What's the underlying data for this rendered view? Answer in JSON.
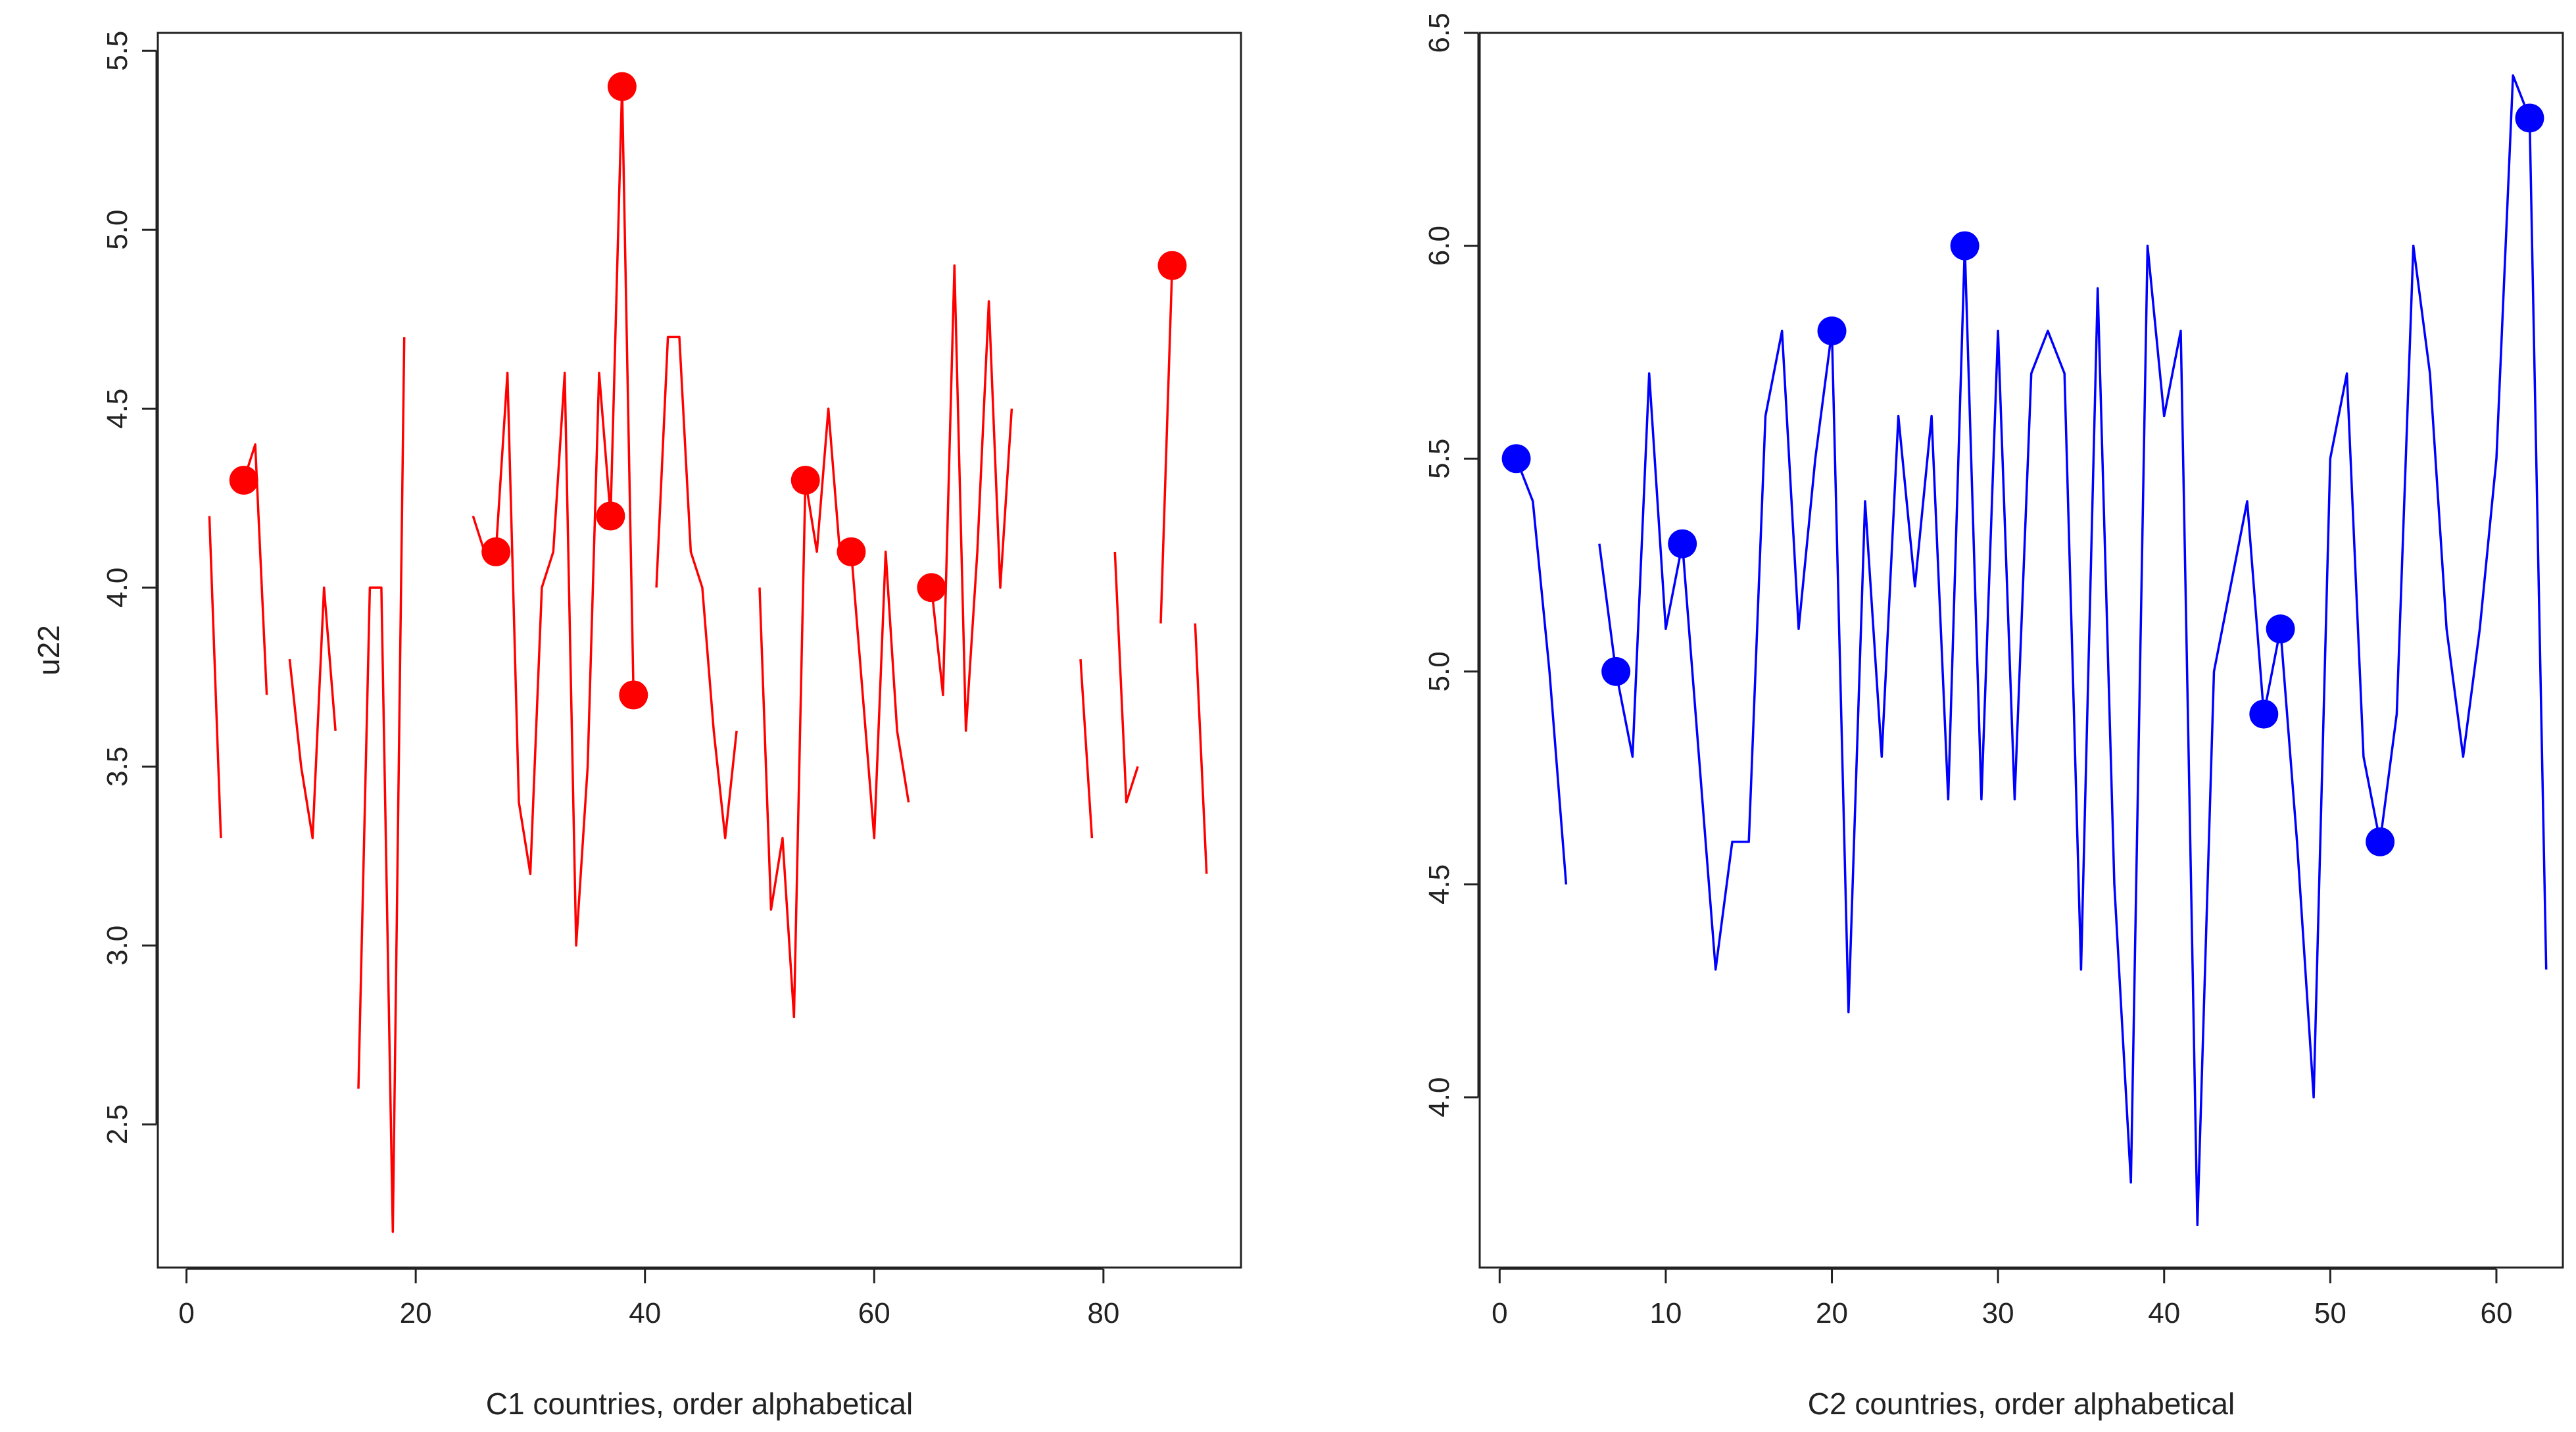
{
  "chart_data": [
    {
      "type": "line",
      "xlabel": "C1 countries, order alphabetical",
      "ylabel": "u22",
      "xlim": [
        -2.5,
        92
      ],
      "ylim": [
        2.1,
        5.55
      ],
      "xticks": [
        0,
        20,
        40,
        60,
        80
      ],
      "yticks": [
        2.5,
        3.0,
        3.5,
        4.0,
        4.5,
        5.0,
        5.5
      ],
      "line_color": "#ff0000",
      "point_color": "#ff0000",
      "series": [
        {
          "name": "u22",
          "x": [
            1,
            2,
            3,
            4,
            5,
            6,
            7,
            8,
            9,
            10,
            11,
            12,
            13,
            14,
            15,
            16,
            17,
            18,
            19,
            20,
            21,
            22,
            23,
            24,
            25,
            26,
            27,
            28,
            29,
            30,
            31,
            32,
            33,
            34,
            35,
            36,
            37,
            38,
            39,
            40,
            41,
            42,
            43,
            44,
            45,
            46,
            47,
            48,
            49,
            50,
            51,
            52,
            53,
            54,
            55,
            56,
            57,
            58,
            59,
            60,
            61,
            62,
            63,
            64,
            65,
            66,
            67,
            68,
            69,
            70,
            71,
            72,
            73,
            74,
            75,
            76,
            77,
            78,
            79,
            80,
            81,
            82,
            83,
            84,
            85,
            86,
            87,
            88,
            89
          ],
          "values": [
            null,
            4.2,
            3.3,
            null,
            4.3,
            4.4,
            3.7,
            null,
            3.8,
            3.5,
            3.3,
            4.0,
            3.6,
            null,
            2.6,
            4.0,
            4.0,
            2.2,
            4.7,
            null,
            null,
            null,
            null,
            null,
            4.2,
            4.1,
            4.1,
            4.6,
            3.4,
            3.2,
            4.0,
            4.1,
            4.6,
            3.0,
            3.5,
            4.6,
            4.2,
            5.4,
            3.7,
            null,
            4.0,
            4.7,
            4.7,
            4.1,
            4.0,
            3.6,
            3.3,
            3.6,
            null,
            4.0,
            3.1,
            3.3,
            2.8,
            4.3,
            4.1,
            4.5,
            4.1,
            4.1,
            3.7,
            3.3,
            4.1,
            3.6,
            3.4,
            null,
            4.0,
            3.7,
            4.9,
            3.6,
            4.1,
            4.8,
            4.0,
            4.5,
            null,
            null,
            null,
            null,
            null,
            3.8,
            3.3,
            null,
            4.1,
            3.4,
            3.5,
            null,
            3.9,
            4.9,
            null,
            3.9,
            3.2
          ]
        }
      ],
      "highlighted_points": {
        "x": [
          5,
          27,
          37,
          38,
          39,
          54,
          58,
          65,
          86
        ],
        "y": [
          4.3,
          4.1,
          4.2,
          5.4,
          3.7,
          4.3,
          4.1,
          4.0,
          4.9
        ]
      }
    },
    {
      "type": "line",
      "xlabel": "C2 countries, order alphabetical",
      "ylabel": "",
      "xlim": [
        -1.2,
        64
      ],
      "ylim": [
        3.6,
        6.5
      ],
      "xticks": [
        0,
        10,
        20,
        30,
        40,
        50,
        60
      ],
      "yticks": [
        4.0,
        4.5,
        5.0,
        5.5,
        6.0,
        6.5
      ],
      "line_color": "#0000ff",
      "point_color": "#0000ff",
      "series": [
        {
          "name": "u22",
          "x": [
            1,
            2,
            3,
            4,
            5,
            6,
            7,
            8,
            9,
            10,
            11,
            12,
            13,
            14,
            15,
            16,
            17,
            18,
            19,
            20,
            21,
            22,
            23,
            24,
            25,
            26,
            27,
            28,
            29,
            30,
            31,
            32,
            33,
            34,
            35,
            36,
            37,
            38,
            39,
            40,
            41,
            42,
            43,
            44,
            45,
            46,
            47,
            48,
            49,
            50,
            51,
            52,
            53,
            54,
            55,
            56,
            57,
            58,
            59,
            60,
            61,
            62,
            63
          ],
          "values": [
            5.5,
            5.4,
            5.0,
            4.5,
            null,
            5.3,
            5.0,
            4.8,
            5.7,
            5.1,
            5.3,
            4.8,
            4.3,
            4.6,
            4.6,
            5.6,
            5.8,
            5.1,
            5.5,
            5.8,
            4.2,
            5.4,
            4.8,
            5.6,
            5.2,
            5.6,
            4.7,
            6.0,
            4.7,
            5.8,
            4.7,
            5.7,
            5.8,
            5.7,
            4.3,
            5.9,
            4.5,
            3.8,
            6.0,
            5.6,
            5.8,
            3.7,
            5.0,
            5.2,
            5.4,
            4.9,
            5.1,
            4.6,
            4.0,
            5.5,
            5.7,
            4.8,
            4.6,
            4.9,
            6.0,
            5.7,
            5.1,
            4.8,
            5.1,
            5.5,
            6.4,
            6.3,
            4.3
          ]
        }
      ],
      "highlighted_points": {
        "x": [
          1,
          7,
          11,
          20,
          28,
          46,
          47,
          53,
          62
        ],
        "y": [
          5.5,
          5.0,
          5.3,
          5.8,
          6.0,
          4.9,
          5.1,
          4.6,
          6.3
        ]
      }
    }
  ]
}
